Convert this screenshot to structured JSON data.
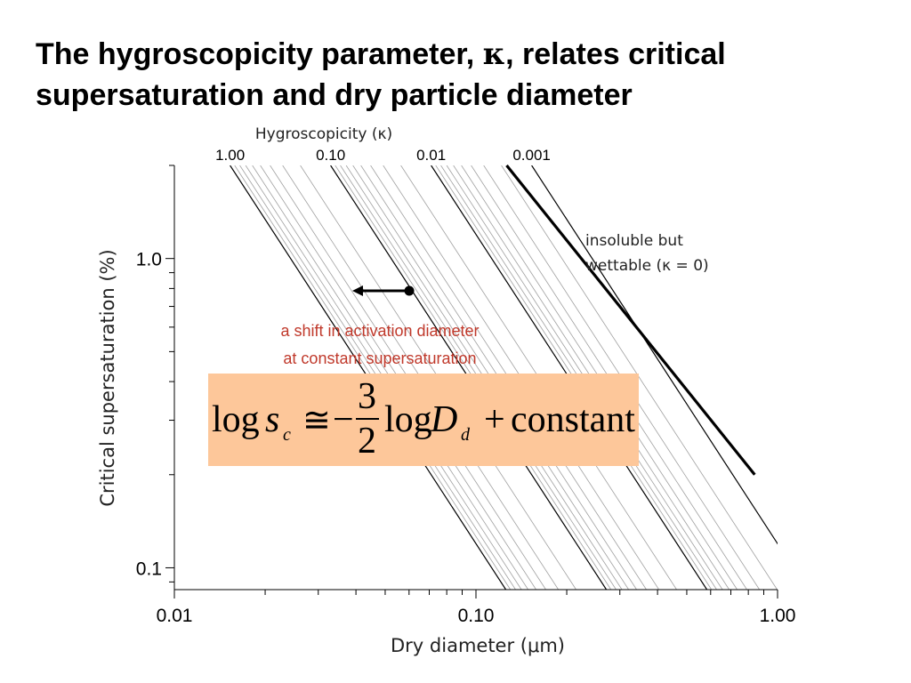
{
  "slide": {
    "title_line1_a": "The hygroscopicity parameter, ",
    "title_kappa": "κ",
    "title_line1_b": ", relates critical",
    "title_line2": "supersaturation and dry particle diameter"
  },
  "chart_data": {
    "type": "line",
    "xlabel": "Dry diameter (μm)",
    "ylabel": "Critical supersaturation (%)",
    "top_axis_label": "Hygroscopicity (κ)",
    "x_scale": "log",
    "y_scale": "log",
    "xlim": [
      0.01,
      1.0
    ],
    "ylim": [
      0.085,
      2.0
    ],
    "x_tick_labels": [
      "0.01",
      "0.10",
      "1.00"
    ],
    "x_ticks": [
      0.01,
      0.1,
      1.0
    ],
    "y_tick_labels": [
      "0.1",
      "1.0"
    ],
    "y_ticks": [
      0.1,
      1.0
    ],
    "kappa_labels": [
      "1.00",
      "0.10",
      "0.01",
      "0.001"
    ],
    "kappa_major": [
      1.0,
      0.1,
      0.01,
      0.001
    ],
    "kappa_minor": [
      0.9,
      0.8,
      0.7,
      0.6,
      0.5,
      0.4,
      0.3,
      0.2,
      0.09,
      0.08,
      0.07,
      0.06,
      0.05,
      0.04,
      0.03,
      0.02,
      0.009,
      0.008,
      0.007,
      0.006,
      0.005,
      0.004,
      0.003,
      0.002
    ],
    "series": [
      {
        "name": "insoluble but wettable (κ = 0)",
        "x": [
          0.1264,
          0.84
        ],
        "y": [
          2.0,
          0.2
        ]
      }
    ],
    "legend_placement": "right",
    "grid": false,
    "annotations": {
      "shift_line1": "a shift in activation diameter",
      "shift_line2": "at constant supersaturation",
      "insoluble_line1": "insoluble but",
      "insoluble_line2": "wettable (κ = 0)"
    },
    "colors": {
      "major_line": "#000000",
      "minor_line": "#a0a0a0",
      "annotation": "#c0392b",
      "equation_box": "#fdc79a"
    }
  },
  "equation": {
    "log1": "log",
    "s": "s",
    "c": "c",
    "approx": "≅",
    "minus": "−",
    "numerator": "3",
    "denominator": "2",
    "log2": "log",
    "D": "D",
    "d": "d",
    "plus": "+",
    "constant": "constant"
  }
}
